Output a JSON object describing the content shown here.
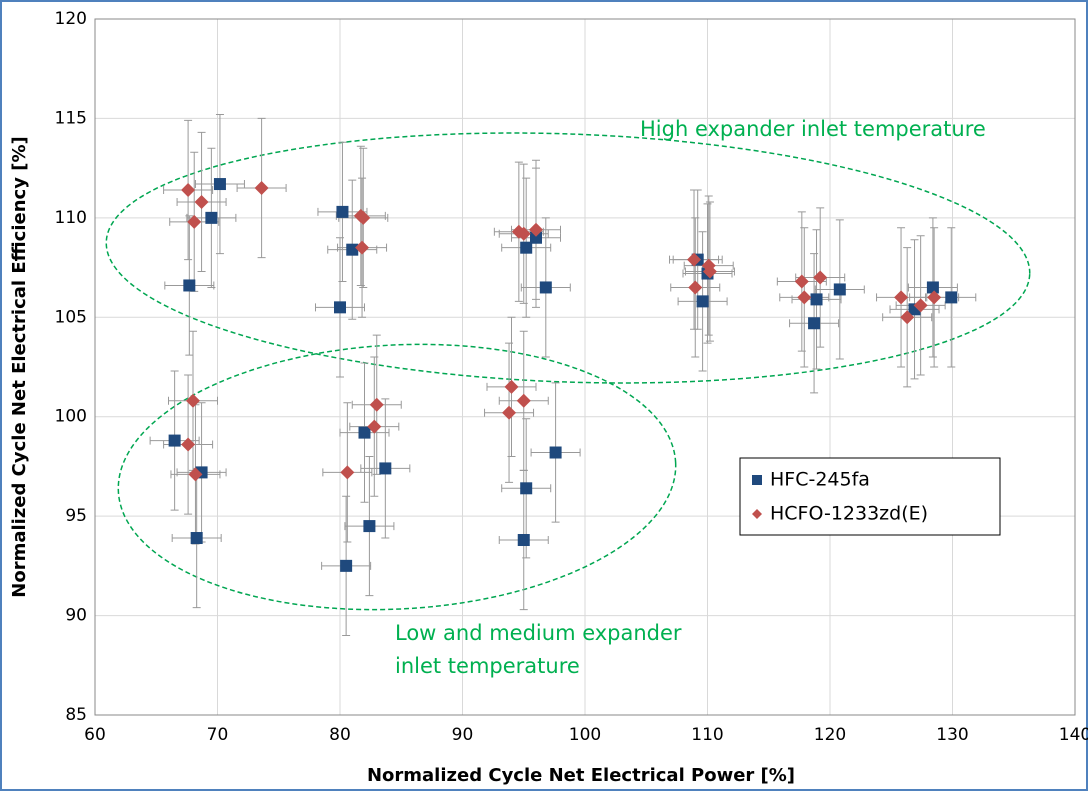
{
  "chart_data": {
    "type": "scatter",
    "xlabel": "Normalized Cycle Net Electrical Power [%]",
    "ylabel": "Normalized Cycle Net Electrical Efficiency [%]",
    "xlim": [
      60,
      140
    ],
    "xticks": [
      60,
      70,
      80,
      90,
      100,
      110,
      120,
      130,
      140
    ],
    "ylim": [
      85,
      120
    ],
    "yticks": [
      85,
      90,
      95,
      100,
      105,
      110,
      115,
      120
    ],
    "grid": true,
    "legend": "right",
    "annotations": [
      [
        "High expander inlet temperature"
      ],
      [
        "Low and medium expander",
        "inlet temperature"
      ]
    ],
    "series": [
      {
        "name": "HFC-245fa",
        "color": "#1f497d",
        "marker": "square",
        "x_error": 2,
        "y_error": 3.5,
        "x": [
          70.2,
          69.5,
          67.7,
          80.2,
          81.0,
          80.0,
          95.2,
          96.0,
          96.8,
          109.2,
          109.6,
          110.0,
          118.9,
          118.7,
          120.8,
          126.9,
          128.4,
          129.9,
          66.5,
          68.7,
          68.3,
          80.5,
          82.0,
          82.4,
          83.7,
          95.2,
          95.0,
          97.6
        ],
        "values": [
          111.7,
          110.0,
          106.6,
          110.3,
          108.4,
          105.5,
          108.5,
          109.0,
          106.5,
          107.9,
          105.8,
          107.2,
          105.9,
          104.7,
          106.4,
          105.4,
          106.5,
          106.0,
          98.8,
          97.2,
          93.9,
          92.5,
          99.2,
          94.5,
          97.4,
          96.4,
          93.8,
          98.2
        ]
      },
      {
        "name": "HCFO-1233zd(E)",
        "color": "#c0504d",
        "marker": "diamond",
        "x_error": 2,
        "y_error": 3.5,
        "x": [
          67.6,
          68.7,
          68.1,
          73.6,
          81.7,
          81.9,
          81.8,
          94.6,
          95.0,
          96.0,
          108.9,
          109.0,
          110.1,
          110.2,
          117.7,
          117.9,
          119.2,
          125.8,
          126.3,
          127.4,
          128.5,
          68.0,
          67.6,
          68.2,
          80.6,
          82.8,
          83.0,
          93.8,
          94.0,
          95.0
        ],
        "values": [
          111.4,
          110.8,
          109.8,
          111.5,
          110.1,
          110.0,
          108.5,
          109.3,
          109.2,
          109.4,
          107.9,
          106.5,
          107.6,
          107.3,
          106.8,
          106.0,
          107.0,
          106.0,
          105.0,
          105.6,
          106.0,
          100.8,
          98.6,
          97.1,
          97.2,
          99.5,
          100.6,
          100.2,
          101.5,
          100.8
        ]
      }
    ]
  }
}
